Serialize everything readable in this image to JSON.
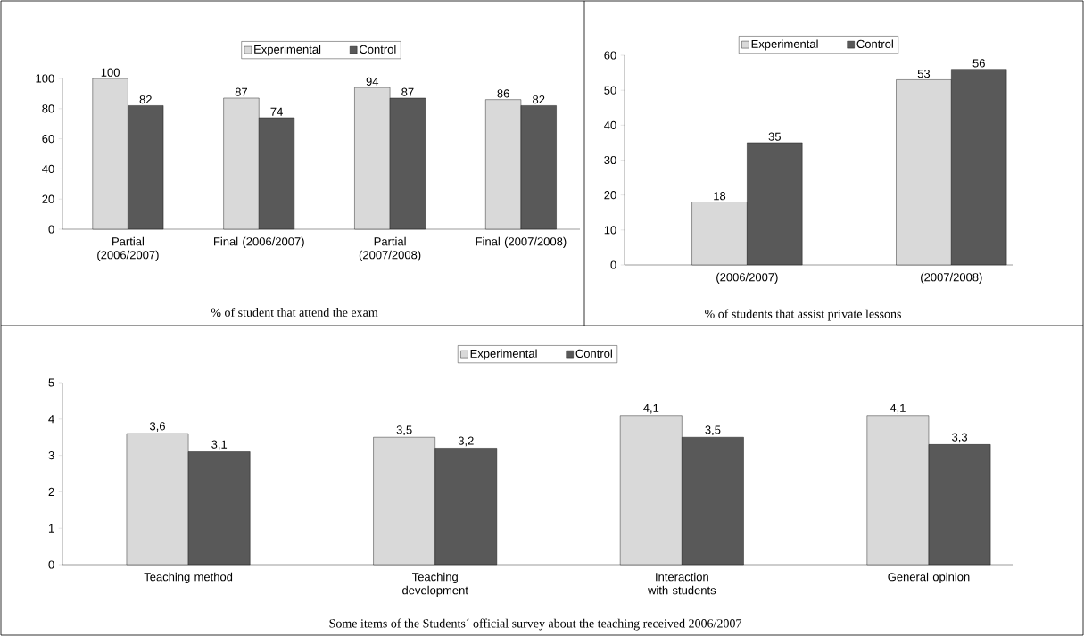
{
  "chart_data": [
    {
      "type": "bar",
      "title": "% of student that attend the exam",
      "categories": [
        "Partial (2006/2007)",
        "Final (2006/2007)",
        "Partial (2007/2008)",
        "Final (2007/2008)"
      ],
      "series": [
        {
          "name": "Experimental",
          "color": "#d9d9d9",
          "values": [
            100,
            87,
            94,
            86
          ]
        },
        {
          "name": "Control",
          "color": "#595959",
          "values": [
            82,
            74,
            87,
            82
          ]
        }
      ],
      "ylim": [
        0,
        100
      ],
      "yticks": [
        0,
        20,
        40,
        60,
        80,
        100
      ],
      "data_labels": true,
      "legend": "top"
    },
    {
      "type": "bar",
      "title": "% of students that assist private lessons",
      "categories": [
        "(2006/2007)",
        "(2007/2008)"
      ],
      "series": [
        {
          "name": "Experimental",
          "color": "#d9d9d9",
          "values": [
            18,
            53
          ]
        },
        {
          "name": "Control",
          "color": "#595959",
          "values": [
            35,
            56
          ]
        }
      ],
      "ylim": [
        0,
        60
      ],
      "yticks": [
        0,
        10,
        20,
        30,
        40,
        50,
        60
      ],
      "data_labels": true,
      "legend": "top"
    },
    {
      "type": "bar",
      "title": "Some items of the Students´ official survey about the teaching received 2006/2007",
      "categories": [
        "Teaching method",
        "Teaching development",
        "Interaction with students",
        "General opinion"
      ],
      "series": [
        {
          "name": "Experimental",
          "color": "#d9d9d9",
          "values": [
            3.6,
            3.5,
            4.1,
            4.1
          ],
          "value_labels": [
            "3,6",
            "3,5",
            "4,1",
            "4,1"
          ]
        },
        {
          "name": "Control",
          "color": "#595959",
          "values": [
            3.1,
            3.2,
            3.5,
            3.3
          ],
          "value_labels": [
            "3,1",
            "3,2",
            "3,5",
            "3,3"
          ]
        }
      ],
      "ylim": [
        0,
        5
      ],
      "yticks": [
        0,
        1,
        2,
        3,
        4,
        5
      ],
      "legend": "top"
    }
  ]
}
